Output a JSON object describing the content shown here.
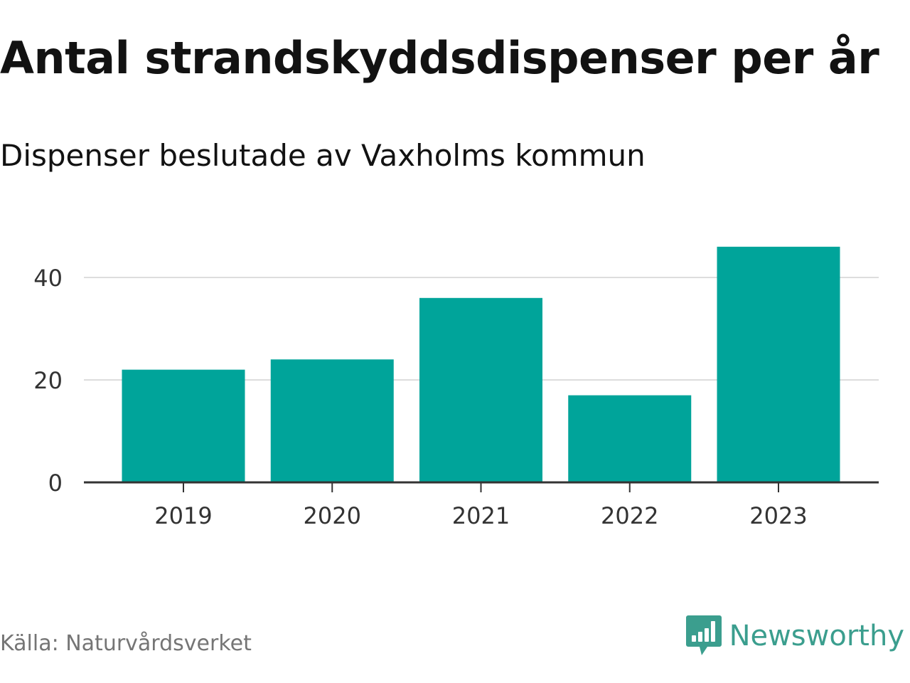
{
  "colors": {
    "bar": "#00A49A",
    "brand": "#3B9E8E",
    "gridline": "#DDDDDD",
    "axis": "#333333",
    "title": "#121212",
    "source": "#757575"
  },
  "footer": {
    "source": "Källa: Naturvårdsverket",
    "brand_name": "Newsworthy",
    "brand_icon": "bar-chart-speech-bubble-icon"
  },
  "chart_data": {
    "type": "bar",
    "title": "Antal strandskyddsdispenser per år",
    "subtitle": "Dispenser beslutade av Vaxholms kommun",
    "xlabel": "",
    "ylabel": "",
    "categories": [
      "2019",
      "2020",
      "2021",
      "2022",
      "2023"
    ],
    "values": [
      22,
      24,
      36,
      17,
      46
    ],
    "ylim": [
      0,
      50
    ],
    "yticks": [
      0,
      20,
      40
    ],
    "grid": true,
    "legend": "none"
  }
}
